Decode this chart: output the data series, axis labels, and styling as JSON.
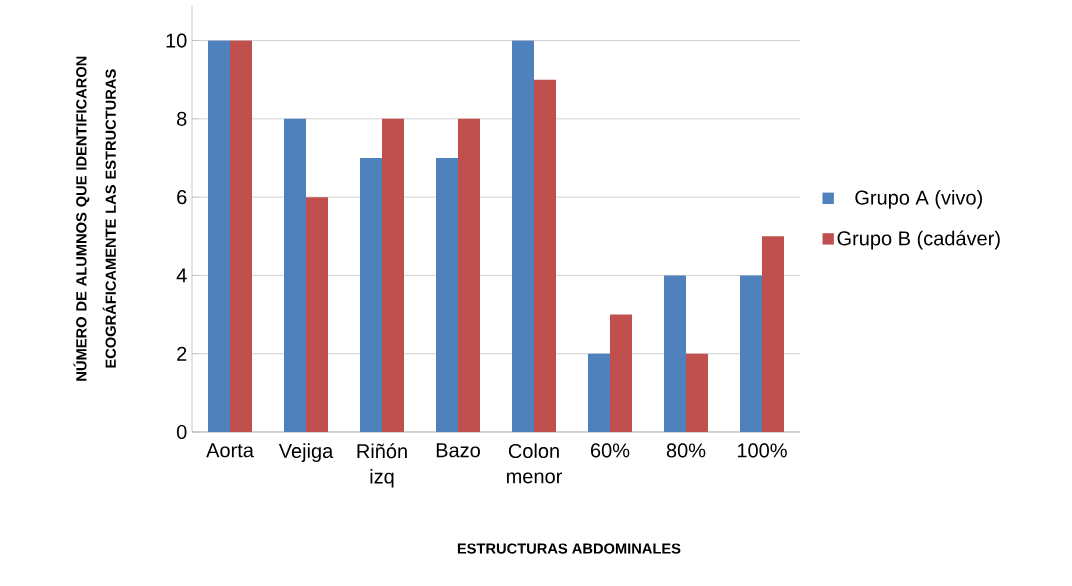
{
  "chart_data": {
    "type": "bar",
    "xlabel": "ESTRUCTURAS ABDOMINALES",
    "ylabel": "NÚMERO DE ALUMNOS QUE  IDENTIFICARON ECOGRÁFICAMENTE LAS ESTRUCTURAS",
    "categories": [
      "Aorta",
      "Vejiga",
      "Riñón izq",
      "Bazo",
      "Colon menor",
      "60%",
      "80%",
      "100%"
    ],
    "series": [
      {
        "name": "Grupo A (vivo)",
        "color": "#4f81bd",
        "values": [
          10,
          8,
          7,
          7,
          10,
          2,
          4,
          4
        ]
      },
      {
        "name": "Grupo B (cadáver)",
        "color": "#c0504d",
        "values": [
          10,
          6,
          8,
          8,
          9,
          3,
          2,
          5
        ]
      }
    ],
    "ylim": [
      0,
      10.9
    ],
    "yticks": [
      0,
      2,
      4,
      6,
      8,
      10
    ],
    "grid": "y",
    "legend": "right"
  }
}
